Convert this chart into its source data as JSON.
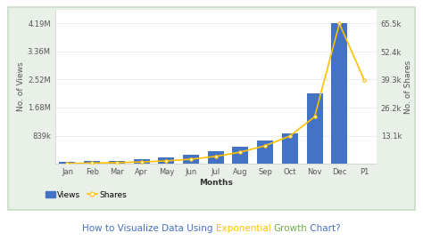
{
  "months": [
    "Jan",
    "Feb",
    "Mar",
    "Apr",
    "May",
    "Jun",
    "Jul",
    "Aug",
    "Sep",
    "Oct",
    "Nov",
    "Dec",
    "P1"
  ],
  "views": [
    50000,
    80000,
    100000,
    140000,
    200000,
    280000,
    370000,
    500000,
    700000,
    900000,
    2100000,
    4190000,
    null
  ],
  "shares": [
    200,
    400,
    600,
    900,
    1400,
    2200,
    3500,
    5500,
    8500,
    13000,
    22000,
    65500,
    39300
  ],
  "bar_color": "#4472C4",
  "line_color": "#FFC000",
  "left_yticks": [
    0,
    839000,
    1680000,
    2520000,
    3360000,
    4190000
  ],
  "left_yticklabels": [
    "",
    "839k",
    "1.68M",
    "2.52M",
    "3.36M",
    "4.19M"
  ],
  "right_yticks": [
    0,
    13100,
    26200,
    39300,
    52400,
    65500
  ],
  "right_yticklabels": [
    "",
    "13.1k",
    "26.2k",
    "39.3k",
    "52.4k",
    "65.5k"
  ],
  "xlabel": "Months",
  "ylabel_left": "No. of Views",
  "ylabel_right": "No. of Shares",
  "bg_outer": "#ffffff",
  "bg_panel": "#e8f0e8",
  "bg_inner": "#ffffff",
  "border_color": "#c8ddc8",
  "title_parts": [
    {
      "text": "How to Visualize Data Using ",
      "color": "#4472C4"
    },
    {
      "text": "Exponential",
      "color": "#FFC000"
    },
    {
      "text": " ",
      "color": "#4472C4"
    },
    {
      "text": "Growth",
      "color": "#70AD47"
    },
    {
      "text": " Chart?",
      "color": "#4472C4"
    }
  ],
  "legend_views_label": "Views",
  "legend_shares_label": "Shares",
  "ylim_left": [
    0,
    4600000
  ],
  "ylim_right": [
    0,
    72000
  ],
  "title_fontsize": 7.5,
  "axis_fontsize": 6.0,
  "label_fontsize": 6.5
}
